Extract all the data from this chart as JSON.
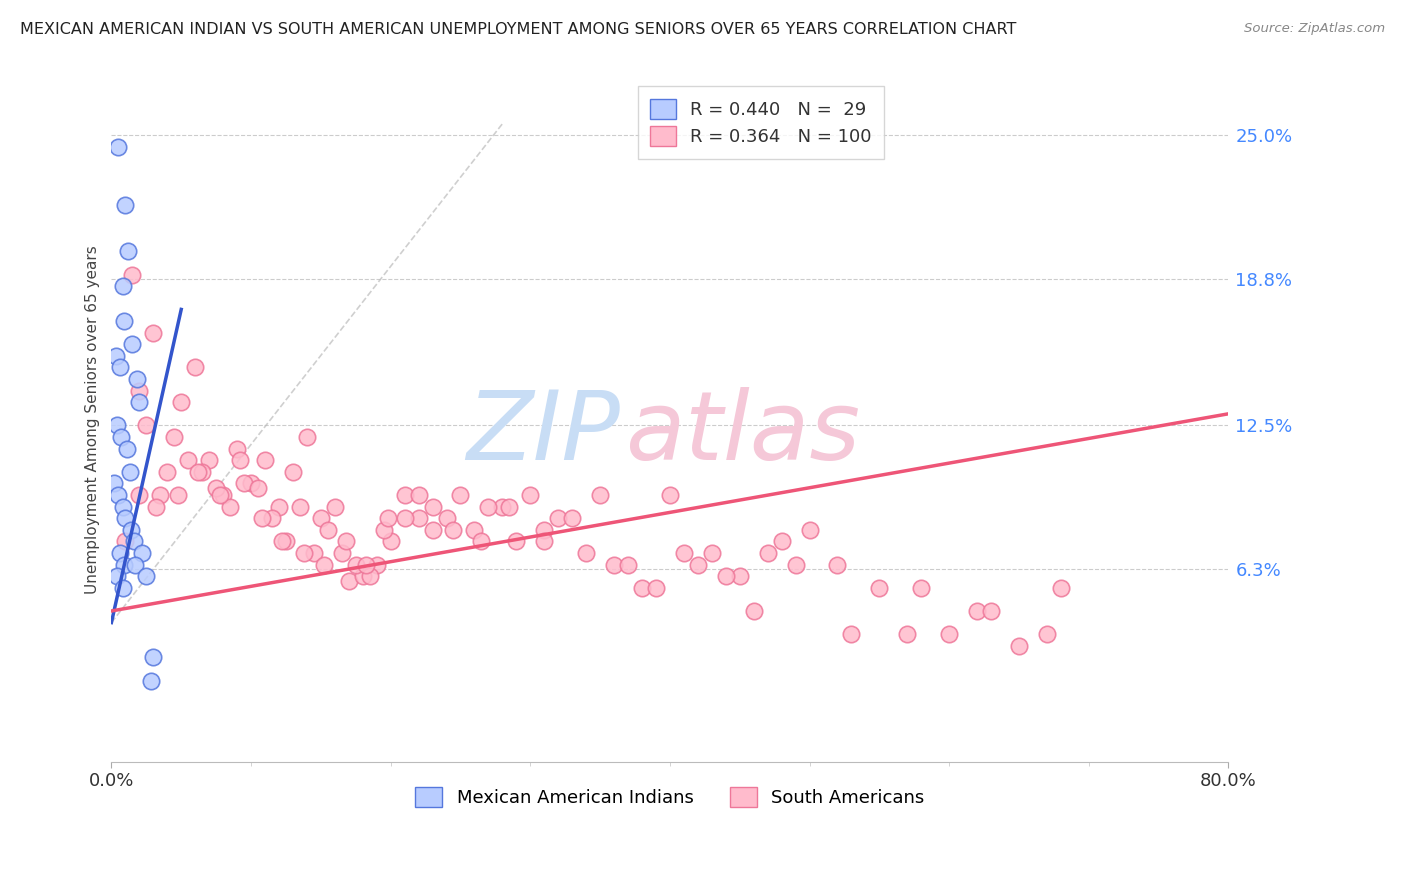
{
  "title": "MEXICAN AMERICAN INDIAN VS SOUTH AMERICAN UNEMPLOYMENT AMONG SENIORS OVER 65 YEARS CORRELATION CHART",
  "source": "Source: ZipAtlas.com",
  "ylabel": "Unemployment Among Seniors over 65 years",
  "right_ytick_vals": [
    6.3,
    12.5,
    18.8,
    25.0
  ],
  "right_ytick_labels": [
    "6.3%",
    "12.5%",
    "18.8%",
    "25.0%"
  ],
  "xmin": 0.0,
  "xmax": 80.0,
  "ymin": -2.0,
  "ymax": 27.5,
  "color_blue_fill": "#B8CCFF",
  "color_blue_edge": "#5577DD",
  "color_pink_fill": "#FFBBCC",
  "color_pink_edge": "#EE7799",
  "color_trendline_blue": "#3355CC",
  "color_trendline_pink": "#EE5577",
  "color_refline": "#BBBBBB",
  "watermark_zip": "#C8DDF5",
  "watermark_atlas": "#F5C8D8",
  "blue_x": [
    0.5,
    1.0,
    1.2,
    0.8,
    0.9,
    1.5,
    0.3,
    0.6,
    1.8,
    2.0,
    0.4,
    0.7,
    1.1,
    1.3,
    0.2,
    0.5,
    0.8,
    1.0,
    1.4,
    1.6,
    2.2,
    0.6,
    0.9,
    1.7,
    2.5,
    0.4,
    0.8,
    3.0,
    2.8
  ],
  "blue_y": [
    24.5,
    22.0,
    20.0,
    18.5,
    17.0,
    16.0,
    15.5,
    15.0,
    14.5,
    13.5,
    12.5,
    12.0,
    11.5,
    10.5,
    10.0,
    9.5,
    9.0,
    8.5,
    8.0,
    7.5,
    7.0,
    7.0,
    6.5,
    6.5,
    6.0,
    6.0,
    5.5,
    2.5,
    1.5
  ],
  "pink_x": [
    1.5,
    2.0,
    3.0,
    4.5,
    5.0,
    6.0,
    7.0,
    8.0,
    9.0,
    10.0,
    11.0,
    12.0,
    13.0,
    14.0,
    15.0,
    16.0,
    17.0,
    18.0,
    19.0,
    20.0,
    21.0,
    22.0,
    23.0,
    25.0,
    26.0,
    28.0,
    30.0,
    32.0,
    35.0,
    38.0,
    40.0,
    42.0,
    45.0,
    48.0,
    50.0,
    55.0,
    60.0,
    65.0,
    68.0,
    2.5,
    3.5,
    4.0,
    5.5,
    6.5,
    7.5,
    8.5,
    9.5,
    10.5,
    11.5,
    12.5,
    13.5,
    14.5,
    15.5,
    16.5,
    17.5,
    18.5,
    19.5,
    21.0,
    23.0,
    24.0,
    27.0,
    29.0,
    31.0,
    33.0,
    36.0,
    39.0,
    41.0,
    44.0,
    47.0,
    52.0,
    57.0,
    62.0,
    1.0,
    2.0,
    3.2,
    4.8,
    6.2,
    7.8,
    9.2,
    10.8,
    12.2,
    13.8,
    15.2,
    16.8,
    18.2,
    19.8,
    22.0,
    24.5,
    26.5,
    28.5,
    31.0,
    34.0,
    37.0,
    43.0,
    46.0,
    49.0,
    53.0,
    58.0,
    63.0,
    67.0
  ],
  "pink_y": [
    19.0,
    14.0,
    16.5,
    12.0,
    13.5,
    15.0,
    11.0,
    9.5,
    11.5,
    10.0,
    11.0,
    9.0,
    10.5,
    12.0,
    8.5,
    9.0,
    5.8,
    6.0,
    6.5,
    7.5,
    9.5,
    8.5,
    8.0,
    9.5,
    8.0,
    9.0,
    9.5,
    8.5,
    9.5,
    5.5,
    9.5,
    6.5,
    6.0,
    7.5,
    8.0,
    5.5,
    3.5,
    3.0,
    5.5,
    12.5,
    9.5,
    10.5,
    11.0,
    10.5,
    9.8,
    9.0,
    10.0,
    9.8,
    8.5,
    7.5,
    9.0,
    7.0,
    8.0,
    7.0,
    6.5,
    6.0,
    8.0,
    8.5,
    9.0,
    8.5,
    9.0,
    7.5,
    8.0,
    8.5,
    6.5,
    5.5,
    7.0,
    6.0,
    7.0,
    6.5,
    3.5,
    4.5,
    7.5,
    9.5,
    9.0,
    9.5,
    10.5,
    9.5,
    11.0,
    8.5,
    7.5,
    7.0,
    6.5,
    7.5,
    6.5,
    8.5,
    9.5,
    8.0,
    7.5,
    9.0,
    7.5,
    7.0,
    6.5,
    7.0,
    4.5,
    6.5,
    3.5,
    5.5,
    4.5,
    3.5
  ],
  "blue_trend_x0": 0.0,
  "blue_trend_x1": 5.0,
  "blue_trend_y0": 4.0,
  "blue_trend_y1": 17.5,
  "pink_trend_x0": 0.0,
  "pink_trend_x1": 80.0,
  "pink_trend_y0": 4.5,
  "pink_trend_y1": 13.0,
  "refline_x0": 0.0,
  "refline_x1": 28.0,
  "refline_y0": 4.0,
  "refline_y1": 25.5
}
